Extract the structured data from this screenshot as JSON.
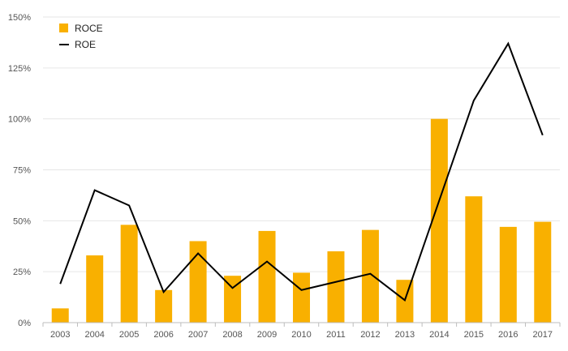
{
  "chart_data": {
    "type": "bar",
    "title": "",
    "xlabel": "",
    "ylabel": "",
    "categories": [
      "2003",
      "2004",
      "2005",
      "2006",
      "2007",
      "2008",
      "2009",
      "2010",
      "2011",
      "2012",
      "2013",
      "2014",
      "2015",
      "2016",
      "2017"
    ],
    "series": [
      {
        "name": "ROCE",
        "type": "bar",
        "color": "#f9b000",
        "values": [
          7,
          33,
          48,
          16,
          40,
          23,
          45,
          24.5,
          35,
          45.5,
          21,
          100,
          62,
          47,
          49.5
        ]
      },
      {
        "name": "ROE",
        "type": "line",
        "color": "#000000",
        "values": [
          19,
          65,
          57.5,
          15,
          34,
          17,
          30,
          16,
          20,
          24,
          11,
          60,
          109,
          137,
          92
        ]
      }
    ],
    "ylim": [
      0,
      150
    ],
    "yticks": [
      0,
      25,
      50,
      75,
      100,
      125,
      150
    ],
    "ytick_labels": [
      "0%",
      "25%",
      "50%",
      "75%",
      "100%",
      "125%",
      "150%"
    ],
    "grid": true,
    "legend_position": "top-left"
  }
}
